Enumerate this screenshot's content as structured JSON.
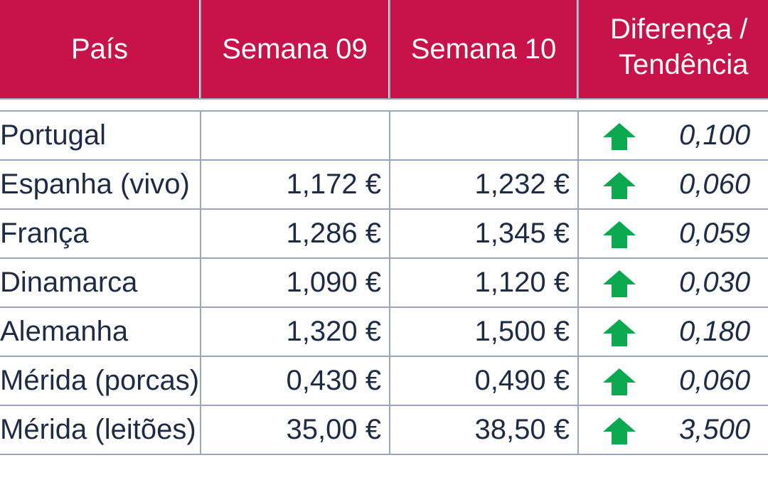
{
  "header": {
    "country": "País",
    "week1": "Semana 09",
    "week2": "Semana 10",
    "diff_line1": "Diferença /",
    "diff_line2": "Tendência"
  },
  "rows": [
    {
      "country": "Portugal",
      "week1": "",
      "week2": "",
      "trend": "up",
      "diff": "0,100"
    },
    {
      "country": "Espanha (vivo)",
      "week1": "1,172 €",
      "week2": "1,232 €",
      "trend": "up",
      "diff": "0,060"
    },
    {
      "country": "França",
      "week1": "1,286 €",
      "week2": "1,345 €",
      "trend": "up",
      "diff": "0,059"
    },
    {
      "country": "Dinamarca",
      "week1": "1,090 €",
      "week2": "1,120 €",
      "trend": "up",
      "diff": "0,030"
    },
    {
      "country": "Alemanha",
      "week1": "1,320 €",
      "week2": "1,500 €",
      "trend": "up",
      "diff": "0,180"
    },
    {
      "country": "Mérida (porcas)",
      "week1": "0,430 €",
      "week2": "0,490 €",
      "trend": "up",
      "diff": "0,060"
    },
    {
      "country": "Mérida (leitões)",
      "week1": "35,00 €",
      "week2": "38,50 €",
      "trend": "up",
      "diff": "3,500"
    }
  ],
  "colors": {
    "header_bg": "#c8134a",
    "arrow": "#0aa84f",
    "text": "#1d2b45"
  }
}
